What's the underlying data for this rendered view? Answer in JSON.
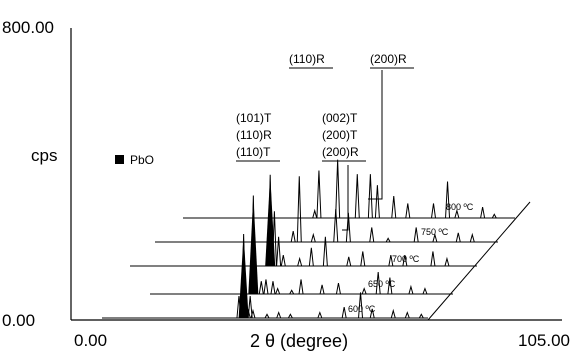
{
  "chart_data": {
    "type": "line",
    "title": "",
    "xlabel": "2 θ (degree)",
    "ylabel": "cps",
    "xlim": [
      0,
      105
    ],
    "ylim": [
      0,
      800
    ],
    "tick_labels": {
      "x_min": "0.00",
      "x_max": "105.00",
      "y_min": "0.00",
      "y_max": "800.00"
    },
    "legend": [
      {
        "marker": "black-square",
        "label": "PbO",
        "color": "#000000"
      }
    ],
    "series": [
      {
        "name": "600 ºC",
        "x": [
          28.5,
          29.5,
          30.5,
          31.5,
          31.9,
          32.5,
          33.0,
          35.5,
          38.0,
          40.5,
          46.8,
          52.0,
          55.5,
          58.0,
          62.5,
          65.5,
          68.5
        ],
        "y": [
          0,
          60,
          230,
          20,
          60,
          20,
          0,
          10,
          15,
          10,
          15,
          30,
          70,
          25,
          20,
          15,
          10
        ]
      },
      {
        "name": "650 ºC",
        "x": [
          27.5,
          28.3,
          30.0,
          31.0,
          32.5,
          33.5,
          36.5,
          38.5,
          43.0,
          46.5,
          52.0,
          55.0,
          57.5,
          62.0,
          65.0
        ],
        "y": [
          0,
          270,
          35,
          40,
          35,
          15,
          10,
          40,
          25,
          30,
          15,
          60,
          45,
          20,
          15
        ]
      },
      {
        "name": "700 ºC",
        "x": [
          26.6,
          27.2,
          28.1,
          29.0,
          30.0,
          33.5,
          36.0,
          39.0,
          44.0,
          47.0,
          53.0,
          56.0,
          62.0,
          65.0
        ],
        "y": [
          0,
          250,
          150,
          80,
          30,
          20,
          50,
          80,
          25,
          40,
          30,
          30,
          40,
          20
        ]
      },
      {
        "name": "750 ºC",
        "x": [
          26.0,
          27.2,
          28.5,
          31.5,
          36.3,
          39.0,
          44.0,
          47.5,
          53.5,
          57.5,
          62.5,
          65.5
        ],
        "y": [
          0,
          30,
          180,
          20,
          90,
          80,
          40,
          10,
          40,
          20,
          25,
          20
        ]
      },
      {
        "name": "800 ºC",
        "x": [
          27.1,
          28.0,
          32.0,
          36.2,
          39.0,
          40.5,
          44.0,
          47.0,
          52.5,
          55.5,
          57.5,
          63.0,
          65.5
        ],
        "y": [
          20,
          130,
          160,
          120,
          120,
          90,
          60,
          40,
          40,
          100,
          20,
          30,
          10
        ]
      }
    ],
    "peak_labels": [
      {
        "lines": [
          "(110)R"
        ],
        "x": 27.1,
        "series": "800 ºC"
      },
      {
        "lines": [
          "(200)R"
        ],
        "x": 39.0,
        "series": "800 ºC"
      },
      {
        "lines": [
          "(101)T",
          "(110)R",
          "(110)T"
        ],
        "x": 28.5,
        "series": "750 ºC"
      },
      {
        "lines": [
          "(002)T",
          "(200)T",
          "(200)R"
        ],
        "x": 38.5,
        "series": "750 ºC"
      }
    ],
    "grid": false,
    "plot_style": "stacked 3D offset (waterfall)"
  }
}
